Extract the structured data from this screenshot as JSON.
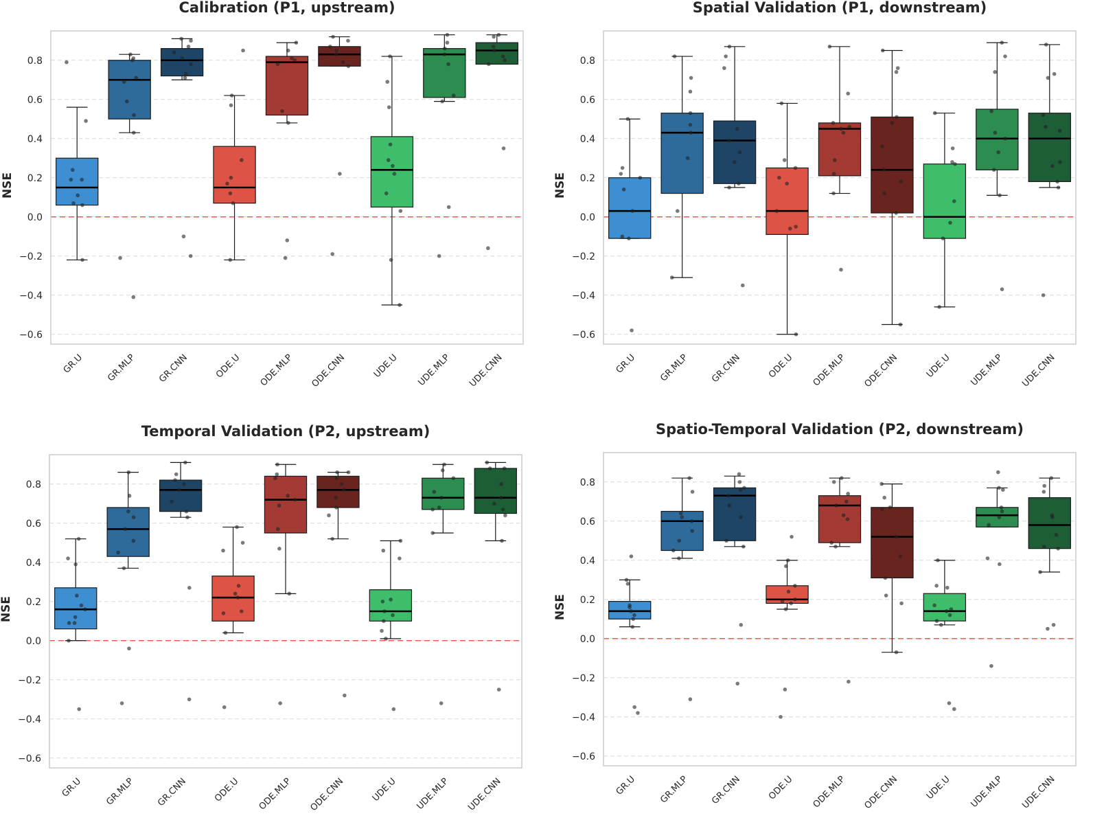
{
  "chart_data": [
    {
      "type": "box",
      "title": "Calibration (P1, upstream)",
      "xlabel": "",
      "ylabel": "NSE",
      "ylim": [
        -0.65,
        0.95
      ],
      "yticks": [
        "−0.6",
        "−0.4",
        "−0.2",
        "0.0",
        "0.2",
        "0.4",
        "0.6",
        "0.8"
      ],
      "grid": "y-dashed",
      "reference_line": {
        "y": 0.0,
        "color": "#e8443a",
        "style": "dashed"
      },
      "categories": [
        "GR.U",
        "GR.MLP",
        "GR.CNN",
        "ODE.U",
        "ODE.MLP",
        "ODE.CNN",
        "UDE.U",
        "UDE.MLP",
        "UDE.CNN"
      ],
      "colors": [
        "#3d8fd1",
        "#2e6b9b",
        "#1f4566",
        "#dd5447",
        "#a33a33",
        "#6a2420",
        "#3ebd6b",
        "#2d8c50",
        "#1e5e37"
      ],
      "boxes": [
        {
          "q1": 0.06,
          "median": 0.15,
          "q3": 0.3,
          "whislo": -0.22,
          "whishi": 0.56,
          "points": [
            0.79,
            0.49,
            0.24,
            0.19,
            0.19,
            0.11,
            0.07,
            0.06,
            -0.22
          ]
        },
        {
          "q1": 0.5,
          "median": 0.7,
          "q3": 0.8,
          "whislo": 0.43,
          "whishi": 0.83,
          "points": [
            0.83,
            0.81,
            0.8,
            0.71,
            0.69,
            0.59,
            0.52,
            0.43,
            -0.21,
            -0.41
          ]
        },
        {
          "q1": 0.72,
          "median": 0.8,
          "q3": 0.86,
          "whislo": 0.7,
          "whishi": 0.91,
          "points": [
            0.91,
            0.9,
            0.87,
            0.84,
            0.81,
            0.78,
            0.73,
            0.71,
            -0.1,
            -0.2
          ]
        },
        {
          "q1": 0.07,
          "median": 0.15,
          "q3": 0.36,
          "whislo": -0.22,
          "whishi": 0.62,
          "points": [
            0.85,
            0.62,
            0.57,
            0.29,
            0.2,
            0.17,
            0.12,
            0.07,
            -0.22
          ]
        },
        {
          "q1": 0.52,
          "median": 0.79,
          "q3": 0.82,
          "whislo": 0.48,
          "whishi": 0.89,
          "points": [
            0.89,
            0.85,
            0.81,
            0.8,
            0.78,
            0.54,
            0.48,
            -0.12,
            -0.21
          ]
        },
        {
          "q1": 0.77,
          "median": 0.83,
          "q3": 0.87,
          "whislo": 0.77,
          "whishi": 0.92,
          "points": [
            0.92,
            0.9,
            0.87,
            0.85,
            0.83,
            0.79,
            0.77,
            0.22,
            -0.19
          ]
        },
        {
          "q1": 0.05,
          "median": 0.24,
          "q3": 0.41,
          "whislo": -0.45,
          "whishi": 0.82,
          "points": [
            0.82,
            0.69,
            0.56,
            0.37,
            0.29,
            0.26,
            0.22,
            0.12,
            0.03,
            -0.22,
            -0.45
          ]
        },
        {
          "q1": 0.61,
          "median": 0.83,
          "q3": 0.86,
          "whislo": 0.59,
          "whishi": 0.93,
          "points": [
            0.93,
            0.89,
            0.86,
            0.83,
            0.78,
            0.62,
            0.59,
            0.05,
            -0.2
          ]
        },
        {
          "q1": 0.78,
          "median": 0.85,
          "q3": 0.89,
          "whislo": 0.78,
          "whishi": 0.93,
          "points": [
            0.93,
            0.92,
            0.87,
            0.85,
            0.82,
            0.8,
            0.78,
            0.35,
            -0.16
          ]
        }
      ]
    },
    {
      "type": "box",
      "title": "Spatial Validation (P1, downstream)",
      "xlabel": "",
      "ylabel": "NSE",
      "ylim": [
        -0.65,
        0.95
      ],
      "yticks": [
        "−0.6",
        "−0.4",
        "−0.2",
        "0.0",
        "0.2",
        "0.4",
        "0.6",
        "0.8"
      ],
      "grid": "y-dashed",
      "reference_line": {
        "y": 0.0,
        "color": "#e8443a",
        "style": "dashed"
      },
      "categories": [
        "GR.U",
        "GR.MLP",
        "GR.CNN",
        "ODE.U",
        "ODE.MLP",
        "ODE.CNN",
        "UDE.U",
        "UDE.MLP",
        "UDE.CNN"
      ],
      "colors": [
        "#3d8fd1",
        "#2e6b9b",
        "#1f4566",
        "#dd5447",
        "#a33a33",
        "#6a2420",
        "#3ebd6b",
        "#2d8c50",
        "#1e5e37"
      ],
      "boxes": [
        {
          "q1": -0.11,
          "median": 0.03,
          "q3": 0.2,
          "whislo": -0.11,
          "whishi": 0.5,
          "points": [
            0.5,
            0.25,
            0.22,
            0.2,
            0.14,
            0.03,
            -0.1,
            -0.11,
            -0.58
          ]
        },
        {
          "q1": 0.12,
          "median": 0.43,
          "q3": 0.53,
          "whislo": -0.31,
          "whishi": 0.82,
          "points": [
            0.82,
            0.71,
            0.64,
            0.53,
            0.47,
            0.43,
            0.3,
            0.03,
            -0.31
          ]
        },
        {
          "q1": 0.17,
          "median": 0.39,
          "q3": 0.49,
          "whislo": 0.15,
          "whishi": 0.87,
          "points": [
            0.87,
            0.82,
            0.76,
            0.45,
            0.39,
            0.33,
            0.28,
            0.17,
            0.15,
            -0.35
          ]
        },
        {
          "q1": -0.09,
          "median": 0.03,
          "q3": 0.25,
          "whislo": -0.6,
          "whishi": 0.58,
          "points": [
            0.58,
            0.29,
            0.25,
            0.2,
            0.17,
            0.03,
            -0.05,
            -0.06,
            -0.6
          ]
        },
        {
          "q1": 0.21,
          "median": 0.45,
          "q3": 0.48,
          "whislo": 0.12,
          "whishi": 0.87,
          "points": [
            0.87,
            0.63,
            0.48,
            0.46,
            0.45,
            0.43,
            0.29,
            0.22,
            0.12,
            -0.27
          ]
        },
        {
          "q1": 0.02,
          "median": 0.24,
          "q3": 0.51,
          "whislo": -0.55,
          "whishi": 0.85,
          "points": [
            0.85,
            0.76,
            0.74,
            0.51,
            0.48,
            0.36,
            0.24,
            0.18,
            0.12,
            0.02,
            -0.55
          ]
        },
        {
          "q1": -0.11,
          "median": 0.0,
          "q3": 0.27,
          "whislo": -0.46,
          "whishi": 0.53,
          "points": [
            0.53,
            0.35,
            0.28,
            0.27,
            0.08,
            -0.03,
            -0.11,
            -0.46
          ]
        },
        {
          "q1": 0.24,
          "median": 0.4,
          "q3": 0.55,
          "whislo": 0.11,
          "whishi": 0.89,
          "points": [
            0.89,
            0.82,
            0.74,
            0.54,
            0.43,
            0.4,
            0.33,
            0.24,
            0.11,
            -0.37
          ]
        },
        {
          "q1": 0.18,
          "median": 0.4,
          "q3": 0.53,
          "whislo": 0.15,
          "whishi": 0.88,
          "points": [
            0.88,
            0.73,
            0.71,
            0.52,
            0.46,
            0.44,
            0.28,
            0.26,
            0.18,
            0.15,
            -0.4
          ]
        }
      ]
    },
    {
      "type": "box",
      "title": "Temporal Validation (P2, upstream)",
      "xlabel": "",
      "ylabel": "NSE",
      "ylim": [
        -0.65,
        0.95
      ],
      "yticks": [
        "−0.6",
        "−0.4",
        "−0.2",
        "0.0",
        "0.2",
        "0.4",
        "0.6",
        "0.8"
      ],
      "grid": "y-dashed",
      "reference_line": {
        "y": 0.0,
        "color": "#e8443a",
        "style": "dashed"
      },
      "categories": [
        "GR.U",
        "GR.MLP",
        "GR.CNN",
        "ODE.U",
        "ODE.MLP",
        "ODE.CNN",
        "UDE.U",
        "UDE.MLP",
        "UDE.CNN"
      ],
      "colors": [
        "#3d8fd1",
        "#2e6b9b",
        "#1f4566",
        "#dd5447",
        "#a33a33",
        "#6a2420",
        "#3ebd6b",
        "#2d8c50",
        "#1e5e37"
      ],
      "boxes": [
        {
          "q1": 0.06,
          "median": 0.16,
          "q3": 0.27,
          "whislo": 0.0,
          "whishi": 0.52,
          "points": [
            0.52,
            0.42,
            0.39,
            0.23,
            0.18,
            0.16,
            0.12,
            0.09,
            0.09,
            0.0,
            -0.35
          ]
        },
        {
          "q1": 0.43,
          "median": 0.57,
          "q3": 0.68,
          "whislo": 0.37,
          "whishi": 0.86,
          "points": [
            0.86,
            0.74,
            0.66,
            0.63,
            0.57,
            0.51,
            0.45,
            0.37,
            -0.04,
            -0.32
          ]
        },
        {
          "q1": 0.66,
          "median": 0.77,
          "q3": 0.82,
          "whislo": 0.63,
          "whishi": 0.91,
          "points": [
            0.91,
            0.85,
            0.82,
            0.8,
            0.77,
            0.71,
            0.66,
            0.63,
            0.27,
            -0.3
          ]
        },
        {
          "q1": 0.1,
          "median": 0.22,
          "q3": 0.33,
          "whislo": 0.04,
          "whishi": 0.58,
          "points": [
            0.58,
            0.5,
            0.46,
            0.28,
            0.24,
            0.22,
            0.15,
            0.14,
            0.04,
            -0.34
          ]
        },
        {
          "q1": 0.55,
          "median": 0.72,
          "q3": 0.84,
          "whislo": 0.24,
          "whishi": 0.9,
          "points": [
            0.9,
            0.85,
            0.83,
            0.74,
            0.72,
            0.69,
            0.57,
            0.47,
            0.24,
            -0.32
          ]
        },
        {
          "q1": 0.68,
          "median": 0.77,
          "q3": 0.84,
          "whislo": 0.52,
          "whishi": 0.86,
          "points": [
            0.86,
            0.86,
            0.83,
            0.8,
            0.77,
            0.73,
            0.68,
            0.64,
            0.52,
            -0.28
          ]
        },
        {
          "q1": 0.1,
          "median": 0.15,
          "q3": 0.26,
          "whislo": 0.01,
          "whishi": 0.51,
          "points": [
            0.51,
            0.46,
            0.42,
            0.21,
            0.2,
            0.15,
            0.13,
            0.1,
            0.05,
            0.01,
            -0.35
          ]
        },
        {
          "q1": 0.67,
          "median": 0.73,
          "q3": 0.83,
          "whislo": 0.55,
          "whishi": 0.9,
          "points": [
            0.9,
            0.87,
            0.83,
            0.76,
            0.73,
            0.68,
            0.67,
            0.55,
            -0.32
          ]
        },
        {
          "q1": 0.65,
          "median": 0.73,
          "q3": 0.88,
          "whislo": 0.51,
          "whishi": 0.91,
          "points": [
            0.91,
            0.88,
            0.88,
            0.8,
            0.73,
            0.7,
            0.67,
            0.64,
            0.51,
            -0.25
          ]
        }
      ]
    },
    {
      "type": "box",
      "title": "Spatio-Temporal Validation (P2, downstream)",
      "xlabel": "",
      "ylabel": "NSE",
      "ylim": [
        -0.65,
        0.95
      ],
      "yticks": [
        "−0.6",
        "−0.4",
        "−0.2",
        "0.0",
        "0.2",
        "0.4",
        "0.6",
        "0.8"
      ],
      "grid": "y-dashed",
      "reference_line": {
        "y": 0.0,
        "color": "#e8443a",
        "style": "dashed"
      },
      "categories": [
        "GR.U",
        "GR.MLP",
        "GR.CNN",
        "ODE.U",
        "ODE.MLP",
        "ODE.CNN",
        "UDE.U",
        "UDE.MLP",
        "UDE.CNN"
      ],
      "colors": [
        "#3d8fd1",
        "#2e6b9b",
        "#1f4566",
        "#dd5447",
        "#a33a33",
        "#6a2420",
        "#3ebd6b",
        "#2d8c50",
        "#1e5e37"
      ],
      "boxes": [
        {
          "q1": 0.1,
          "median": 0.14,
          "q3": 0.19,
          "whislo": 0.06,
          "whishi": 0.3,
          "points": [
            0.42,
            0.3,
            0.28,
            0.17,
            0.16,
            0.14,
            0.12,
            0.1,
            0.06,
            -0.35,
            -0.38
          ]
        },
        {
          "q1": 0.45,
          "median": 0.6,
          "q3": 0.65,
          "whislo": 0.41,
          "whishi": 0.82,
          "points": [
            0.82,
            0.75,
            0.64,
            0.62,
            0.6,
            0.55,
            0.5,
            0.45,
            0.41,
            -0.31
          ]
        },
        {
          "q1": 0.5,
          "median": 0.73,
          "q3": 0.77,
          "whislo": 0.47,
          "whishi": 0.83,
          "points": [
            0.84,
            0.8,
            0.77,
            0.76,
            0.73,
            0.68,
            0.62,
            0.5,
            0.47,
            0.07,
            -0.23
          ]
        },
        {
          "q1": 0.18,
          "median": 0.2,
          "q3": 0.27,
          "whislo": 0.15,
          "whishi": 0.4,
          "points": [
            0.52,
            0.4,
            0.37,
            0.27,
            0.24,
            0.2,
            0.19,
            0.18,
            0.15,
            -0.26,
            -0.4
          ]
        },
        {
          "q1": 0.49,
          "median": 0.68,
          "q3": 0.73,
          "whislo": 0.47,
          "whishi": 0.82,
          "points": [
            0.82,
            0.8,
            0.74,
            0.7,
            0.68,
            0.63,
            0.61,
            0.49,
            0.47,
            -0.22
          ]
        },
        {
          "q1": 0.31,
          "median": 0.52,
          "q3": 0.67,
          "whislo": -0.07,
          "whishi": 0.79,
          "points": [
            0.79,
            0.72,
            0.67,
            0.66,
            0.52,
            0.42,
            0.31,
            0.22,
            0.18,
            -0.07
          ]
        },
        {
          "q1": 0.09,
          "median": 0.14,
          "q3": 0.23,
          "whislo": 0.07,
          "whishi": 0.4,
          "points": [
            0.4,
            0.27,
            0.26,
            0.17,
            0.15,
            0.14,
            0.12,
            0.09,
            0.07,
            -0.33,
            -0.36
          ]
        },
        {
          "q1": 0.57,
          "median": 0.63,
          "q3": 0.67,
          "whislo": 0.57,
          "whishi": 0.77,
          "points": [
            0.85,
            0.77,
            0.76,
            0.67,
            0.65,
            0.62,
            0.58,
            0.41,
            0.38,
            -0.14
          ]
        },
        {
          "q1": 0.46,
          "median": 0.58,
          "q3": 0.72,
          "whislo": 0.34,
          "whishi": 0.82,
          "points": [
            0.82,
            0.78,
            0.75,
            0.63,
            0.62,
            0.53,
            0.47,
            0.46,
            0.34,
            0.07,
            0.05
          ]
        }
      ]
    }
  ]
}
